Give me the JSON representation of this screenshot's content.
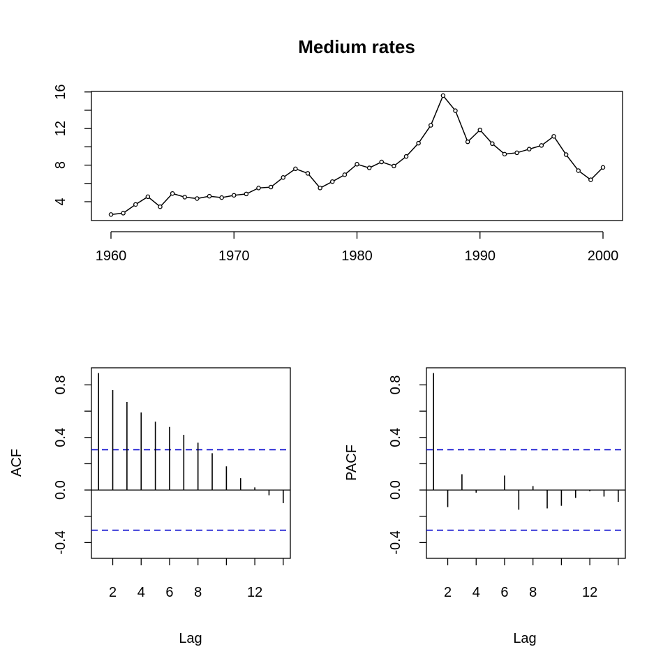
{
  "chart_data": [
    {
      "type": "line",
      "title": "Medium rates",
      "xlabel": "",
      "ylabel": "",
      "xlim": [
        1960,
        2000
      ],
      "ylim": [
        2.4,
        15.6
      ],
      "x_ticks": [
        1960,
        1970,
        1980,
        1990,
        2000
      ],
      "y_ticks": [
        4,
        8,
        12,
        16
      ],
      "y_minor_ticks": [
        6,
        10,
        14
      ],
      "grid": false,
      "marker": "open-circle",
      "x": [
        1960,
        1961,
        1962,
        1963,
        1964,
        1965,
        1966,
        1967,
        1968,
        1969,
        1970,
        1971,
        1972,
        1973,
        1974,
        1975,
        1976,
        1977,
        1978,
        1979,
        1980,
        1981,
        1982,
        1983,
        1984,
        1985,
        1986,
        1987,
        1988,
        1989,
        1990,
        1991,
        1992,
        1993,
        1994,
        1995,
        1996,
        1997,
        1998,
        1999,
        2000
      ],
      "y": [
        2.6,
        2.75,
        3.7,
        4.55,
        3.45,
        4.9,
        4.5,
        4.35,
        4.6,
        4.45,
        4.7,
        4.85,
        5.5,
        5.6,
        6.65,
        7.6,
        7.1,
        5.5,
        6.2,
        6.95,
        8.1,
        7.7,
        8.35,
        7.9,
        8.95,
        10.4,
        12.35,
        15.6,
        13.95,
        10.55,
        11.85,
        10.35,
        9.2,
        9.35,
        9.75,
        10.15,
        11.15,
        9.15,
        7.4,
        6.4,
        7.75
      ]
    },
    {
      "type": "bar",
      "title": "",
      "xlabel": "Lag",
      "ylabel": "ACF",
      "xlim": [
        0.5,
        14.5
      ],
      "ylim": [
        -0.52,
        0.93
      ],
      "x_ticks": [
        2,
        4,
        6,
        8,
        12
      ],
      "x_minor_ticks": [
        10,
        14
      ],
      "y_ticks": [
        -0.4,
        0.0,
        0.4,
        0.8
      ],
      "y_minor_ticks": [
        -0.2,
        0.2,
        0.6
      ],
      "confidence_bound": 0.306,
      "confidence_color": "#0000cc",
      "lags": [
        1,
        2,
        3,
        4,
        5,
        6,
        7,
        8,
        9,
        10,
        11,
        12,
        13,
        14
      ],
      "values": [
        0.89,
        0.76,
        0.67,
        0.59,
        0.52,
        0.48,
        0.42,
        0.36,
        0.28,
        0.18,
        0.09,
        0.02,
        -0.04,
        -0.1
      ]
    },
    {
      "type": "bar",
      "title": "",
      "xlabel": "Lag",
      "ylabel": "PACF",
      "xlim": [
        0.5,
        14.5
      ],
      "ylim": [
        -0.52,
        0.93
      ],
      "x_ticks": [
        2,
        4,
        6,
        8,
        12
      ],
      "x_minor_ticks": [
        10,
        14
      ],
      "y_ticks": [
        -0.4,
        0.0,
        0.4,
        0.8
      ],
      "y_minor_ticks": [
        -0.2,
        0.2,
        0.6
      ],
      "confidence_bound": 0.306,
      "confidence_color": "#0000cc",
      "lags": [
        1,
        2,
        3,
        4,
        5,
        6,
        7,
        8,
        9,
        10,
        11,
        12,
        13,
        14
      ],
      "values": [
        0.89,
        -0.13,
        0.12,
        -0.02,
        0.0,
        0.11,
        -0.15,
        0.03,
        -0.14,
        -0.12,
        -0.06,
        -0.01,
        -0.05,
        -0.09
      ]
    }
  ]
}
